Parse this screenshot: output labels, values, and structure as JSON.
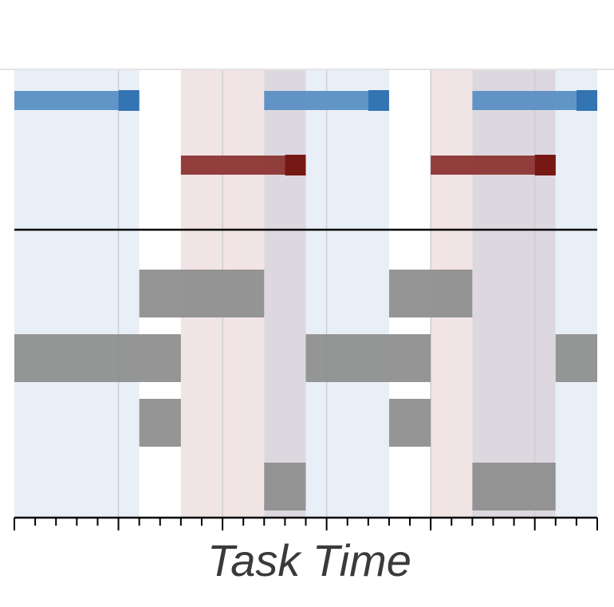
{
  "chart_data": {
    "type": "gantt",
    "title": "",
    "xlabel": "Task Time",
    "ylabel": "",
    "xlim": [
      0,
      28
    ],
    "grid": true,
    "x_minor_tick_step": 1,
    "x_major_tick_step": 5,
    "lanes_top": 2,
    "lanes_bottom": 4,
    "colors": {
      "blue_phase": "#e9eff7",
      "red_phase": "#f1e4e4",
      "overlap_phase": "#ddd8df",
      "blue_bar": "#5b8fc4",
      "blue_cap": "#3374b2",
      "red_bar": "#8c3533",
      "red_cap": "#761813",
      "gray_block": "#8f8f8f",
      "divider": "#000000",
      "gridline": "#c9ccd2",
      "axis": "#000000"
    },
    "shaded_regions": [
      {
        "kind": "blue",
        "start": 0,
        "end": 6
      },
      {
        "kind": "red",
        "start": 8,
        "end": 12
      },
      {
        "kind": "overlap",
        "start": 12,
        "end": 14
      },
      {
        "kind": "blue",
        "start": 14,
        "end": 18
      },
      {
        "kind": "red",
        "start": 20,
        "end": 22
      },
      {
        "kind": "overlap",
        "start": 22,
        "end": 26
      },
      {
        "kind": "blue",
        "start": 26,
        "end": 28
      }
    ],
    "series": [
      {
        "color": "blue",
        "lane": 0,
        "intervals": [
          [
            0,
            6
          ],
          [
            12,
            18
          ],
          [
            22,
            28
          ]
        ]
      },
      {
        "color": "red",
        "lane": 1,
        "intervals": [
          [
            8,
            14
          ],
          [
            20,
            26
          ]
        ]
      }
    ],
    "blocks": [
      {
        "lane": 0,
        "intervals": [
          [
            6,
            12
          ],
          [
            18,
            22
          ]
        ]
      },
      {
        "lane": 1,
        "intervals": [
          [
            0,
            8
          ],
          [
            14,
            20
          ],
          [
            26,
            28
          ]
        ]
      },
      {
        "lane": 2,
        "intervals": [
          [
            6,
            8
          ],
          [
            18,
            20
          ]
        ]
      },
      {
        "lane": 3,
        "intervals": [
          [
            12,
            14
          ],
          [
            22,
            26
          ]
        ]
      }
    ]
  }
}
